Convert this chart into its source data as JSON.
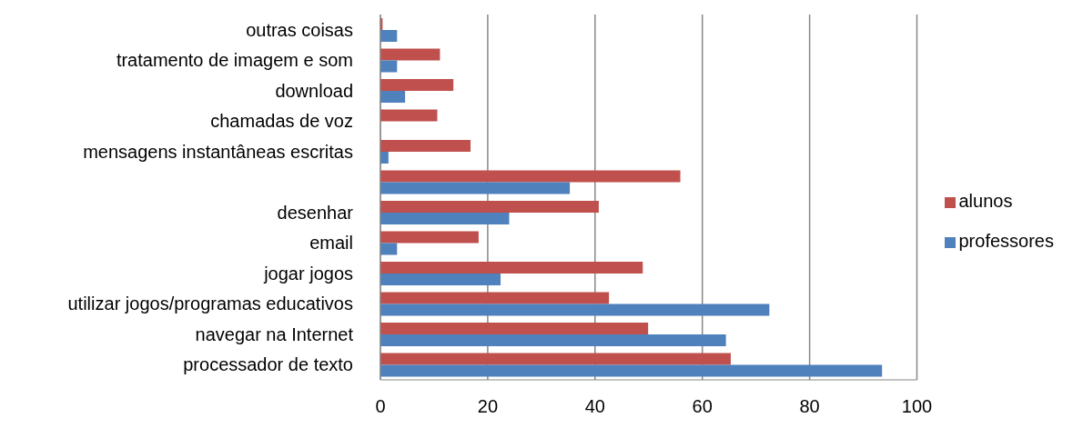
{
  "chart_data": {
    "type": "bar",
    "orientation": "horizontal",
    "categories": [
      "outras coisas",
      "tratamento de imagem e som",
      "download",
      "chamadas de voz",
      "mensagens instantâneas escritas",
      null,
      "desenhar",
      "email",
      "jogar jogos",
      "utilizar jogos/programas educativos",
      "navegar na Internet",
      "processador de texto"
    ],
    "series": [
      {
        "name": "alunos",
        "color": "#c0504d",
        "values": [
          0.4,
          11.1,
          13.6,
          10.6,
          16.8,
          55.9,
          40.7,
          18.3,
          48.9,
          42.6,
          49.9,
          65.3
        ]
      },
      {
        "name": "professores",
        "color": "#4f81bd",
        "values": [
          3.1,
          3.1,
          4.6,
          0,
          1.5,
          35.3,
          24.0,
          3.1,
          22.4,
          72.5,
          64.4,
          93.5
        ]
      }
    ],
    "xlim": [
      0,
      100
    ],
    "xticks": [
      0,
      20,
      40,
      60,
      80,
      100
    ],
    "grid": "x",
    "legend": "right"
  }
}
